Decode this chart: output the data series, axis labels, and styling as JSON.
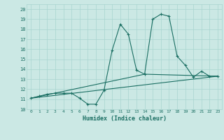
{
  "xlabel": "Humidex (Indice chaleur)",
  "ylabel": "",
  "xlim": [
    -0.5,
    23.5
  ],
  "ylim": [
    10,
    20.5
  ],
  "yticks": [
    10,
    11,
    12,
    13,
    14,
    15,
    16,
    17,
    18,
    19,
    20
  ],
  "xticks": [
    0,
    1,
    2,
    3,
    4,
    5,
    6,
    7,
    8,
    9,
    10,
    11,
    12,
    13,
    14,
    15,
    16,
    17,
    18,
    19,
    20,
    21,
    22,
    23
  ],
  "bg_color": "#cbe8e4",
  "line_color": "#1a6e62",
  "grid_color": "#a8d5cf",
  "line1_x": [
    0,
    1,
    2,
    3,
    4,
    5,
    6,
    7,
    8,
    9,
    10,
    11,
    12,
    13,
    14,
    15,
    16,
    17,
    18,
    19,
    20,
    21,
    22,
    23
  ],
  "line1_y": [
    11.1,
    11.3,
    11.5,
    11.6,
    11.6,
    11.6,
    11.1,
    10.5,
    10.5,
    11.9,
    15.9,
    18.5,
    17.5,
    13.9,
    13.5,
    19.0,
    19.5,
    19.3,
    15.3,
    14.4,
    13.2,
    13.8,
    13.3,
    13.3
  ],
  "line2_x": [
    0,
    23
  ],
  "line2_y": [
    11.1,
    13.3
  ],
  "line3_x": [
    0,
    14,
    23
  ],
  "line3_y": [
    11.1,
    13.5,
    13.3
  ]
}
